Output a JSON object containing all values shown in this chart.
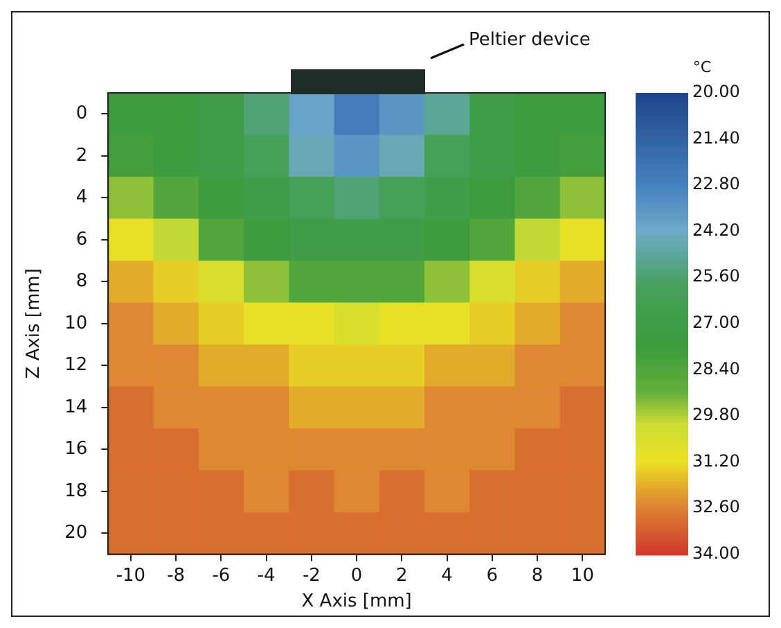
{
  "chart_data": {
    "type": "heatmap",
    "xlabel": "X Axis [mm]",
    "ylabel": "Z Axis [mm]",
    "clabel": "°C",
    "annotations": [
      "Peltier device"
    ],
    "categories": [
      "-10",
      "-8",
      "-6",
      "-4",
      "-2",
      "0",
      "2",
      "4",
      "6",
      "8",
      "10"
    ],
    "y_categories": [
      "0",
      "2",
      "4",
      "6",
      "8",
      "10",
      "12",
      "14",
      "16",
      "18",
      "20"
    ],
    "clim": [
      20,
      34
    ],
    "cticks": [
      {
        "value": 20,
        "label": "20.00"
      },
      {
        "value": 21.4,
        "label": "21.40"
      },
      {
        "value": 22.8,
        "label": "22.80"
      },
      {
        "value": 24.2,
        "label": "24.20"
      },
      {
        "value": 25.6,
        "label": "25.60"
      },
      {
        "value": 27,
        "label": "27.00"
      },
      {
        "value": 28.4,
        "label": "28.40"
      },
      {
        "value": 29.8,
        "label": "29.80"
      },
      {
        "value": 31.2,
        "label": "31.20"
      },
      {
        "value": 32.6,
        "label": "32.60"
      },
      {
        "value": 34,
        "label": "34.00"
      }
    ],
    "cells": [
      [
        27.5,
        27.5,
        27,
        25.5,
        24,
        22.5,
        23.5,
        25,
        27,
        27.5,
        27.5
      ],
      [
        28,
        27.5,
        27,
        26,
        24.5,
        23.5,
        24.5,
        26,
        27,
        27.5,
        28
      ],
      [
        29.5,
        28.5,
        27.5,
        27,
        26,
        25.5,
        26,
        27,
        27.5,
        28.5,
        29.5
      ],
      [
        31,
        30,
        28.5,
        27.5,
        27,
        27,
        27,
        27.5,
        28.5,
        30,
        31
      ],
      [
        32,
        31.5,
        30.5,
        29.5,
        28.5,
        28.5,
        28.5,
        29.5,
        30.5,
        31.5,
        32
      ],
      [
        32.5,
        32,
        31.5,
        31,
        31,
        30.5,
        31,
        31,
        31.5,
        32,
        32.5
      ],
      [
        32.5,
        32.5,
        32,
        32,
        31.5,
        31.5,
        31.5,
        32,
        32,
        32.5,
        32.5
      ],
      [
        33,
        32.5,
        32.5,
        32.5,
        32,
        32,
        32,
        32.5,
        32.5,
        32.5,
        33
      ],
      [
        33,
        33,
        32.5,
        32.5,
        32.5,
        32.5,
        32.5,
        32.5,
        32.5,
        33,
        33
      ],
      [
        33,
        33,
        33,
        32.5,
        33,
        32.5,
        33,
        32.5,
        33,
        33,
        33
      ],
      [
        33,
        33,
        33,
        33,
        33,
        33,
        33,
        33,
        33,
        33,
        33
      ]
    ],
    "legend": false
  }
}
